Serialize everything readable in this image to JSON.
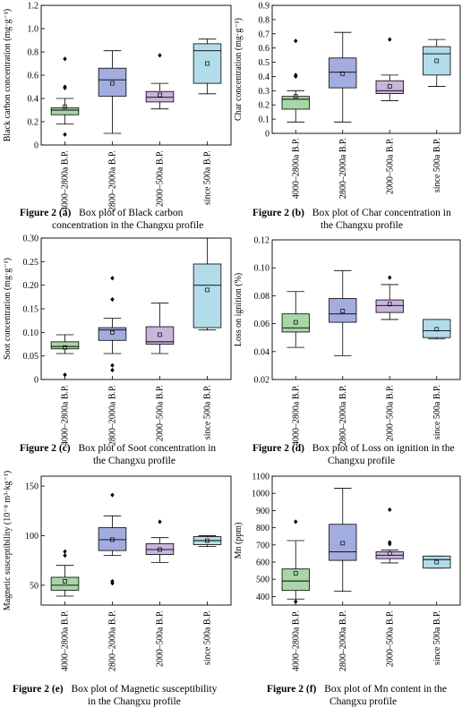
{
  "figure": {
    "panels": [
      {
        "caption_label": "Figure 2 (a)",
        "caption_text": "Box plot of Black carbon concentration in the Changxu profile",
        "caption_lines": [
          "Box plot of Black carbon",
          "concentration in the Changxu profile"
        ]
      },
      {
        "caption_label": "Figure 2 (b)",
        "caption_text": "Box plot of Char concentration in the Changxu profile",
        "caption_lines": [
          "Box plot of Char concentration in",
          "the Changxu profile"
        ]
      },
      {
        "caption_label": "Figure 2 (c)",
        "caption_text": "Box plot of Soot concentration in the Changxu profile",
        "caption_lines": [
          "Box plot of Soot concentration in",
          "the Changxu profile"
        ]
      },
      {
        "caption_label": "Figure 2 (d)",
        "caption_text": "Box plot of Loss on ignition in the Changxu profile",
        "caption_lines": [
          "Box plot of Loss on ignition in the",
          "Changxu profile"
        ]
      },
      {
        "caption_label": "Figure 2 (e)",
        "caption_text": "Box plot of Magnetic susceptibility in the Changxu profile",
        "caption_lines": [
          "Box plot of Magnetic susceptibility",
          "in the Changxu profile"
        ]
      },
      {
        "caption_label": "Figure 2 (f)",
        "caption_text": "Box plot of Mn content in the Changxu profile",
        "caption_lines": [
          "Box plot of Mn content in the",
          "Changxu profile"
        ]
      }
    ]
  },
  "chart_data": [
    {
      "type": "box",
      "ylabel": "Black carbon concentration (mg·g⁻¹)",
      "ylim": [
        0,
        1.2
      ],
      "yticks": [
        0,
        0.2,
        0.4,
        0.6,
        0.8,
        1.0,
        1.2
      ],
      "ytick_labels": [
        "0",
        "0.2",
        "0.4",
        "0.6",
        "0.8",
        "1.0",
        "1.2"
      ],
      "categories": [
        "4000–2800a B.P.",
        "2800–2000a B.P.",
        "2000–500a B.P.",
        "since 500a B.P."
      ],
      "colors": [
        "#a9d5a7",
        "#a3acdf",
        "#c9b4dd",
        "#b2dcea"
      ],
      "grid": false,
      "boxes": [
        {
          "min": 0.18,
          "q1": 0.26,
          "median": 0.3,
          "q3": 0.32,
          "max": 0.4,
          "mean": 0.33,
          "outliers": [
            0.74,
            0.5,
            0.49,
            0.09
          ]
        },
        {
          "min": 0.1,
          "q1": 0.42,
          "median": 0.56,
          "q3": 0.66,
          "max": 0.81,
          "mean": 0.53,
          "outliers": []
        },
        {
          "min": 0.31,
          "q1": 0.37,
          "median": 0.41,
          "q3": 0.46,
          "max": 0.53,
          "mean": 0.43,
          "outliers": [
            0.77
          ]
        },
        {
          "min": 0.44,
          "q1": 0.53,
          "median": 0.81,
          "q3": 0.87,
          "max": 0.91,
          "mean": 0.7,
          "outliers": []
        }
      ]
    },
    {
      "type": "box",
      "ylabel": "Char concentration (mg·g⁻¹)",
      "ylim": [
        0,
        0.9
      ],
      "yticks": [
        0,
        0.1,
        0.2,
        0.3,
        0.4,
        0.5,
        0.6,
        0.7,
        0.8,
        0.9
      ],
      "ytick_labels": [
        "0",
        "0.1",
        "0.2",
        "0.3",
        "0.4",
        "0.5",
        "0.6",
        "0.7",
        "0.8",
        "0.9"
      ],
      "categories": [
        "4000–2800a B.P.",
        "2800–2000a B.P.",
        "2000–500a B.P.",
        "since 500a B.P."
      ],
      "colors": [
        "#a9d5a7",
        "#a3acdf",
        "#c9b4dd",
        "#b2dcea"
      ],
      "grid": false,
      "boxes": [
        {
          "min": 0.08,
          "q1": 0.17,
          "median": 0.24,
          "q3": 0.26,
          "max": 0.3,
          "mean": 0.26,
          "outliers": [
            0.65,
            0.41,
            0.4
          ]
        },
        {
          "min": 0.08,
          "q1": 0.32,
          "median": 0.43,
          "q3": 0.53,
          "max": 0.71,
          "mean": 0.42,
          "outliers": []
        },
        {
          "min": 0.23,
          "q1": 0.28,
          "median": 0.3,
          "q3": 0.37,
          "max": 0.41,
          "mean": 0.33,
          "outliers": [
            0.66
          ]
        },
        {
          "min": 0.33,
          "q1": 0.41,
          "median": 0.56,
          "q3": 0.61,
          "max": 0.66,
          "mean": 0.51,
          "outliers": []
        }
      ]
    },
    {
      "type": "box",
      "ylabel": "Soot concentration (mg·g⁻¹)",
      "ylim": [
        0,
        0.3
      ],
      "yticks": [
        0,
        0.05,
        0.1,
        0.15,
        0.2,
        0.25,
        0.3
      ],
      "ytick_labels": [
        "0",
        "0.05",
        "0.10",
        "0.15",
        "0.20",
        "0.25",
        "0.30"
      ],
      "categories": [
        "4000–2800a B.P.",
        "2800–2000a B.P.",
        "2000–500a B.P.",
        "since 500a B.P."
      ],
      "colors": [
        "#a9d5a7",
        "#a3acdf",
        "#c9b4dd",
        "#b2dcea"
      ],
      "grid": false,
      "boxes": [
        {
          "min": 0.055,
          "q1": 0.065,
          "median": 0.07,
          "q3": 0.08,
          "max": 0.095,
          "mean": 0.068,
          "outliers": [
            0.01
          ]
        },
        {
          "min": 0.055,
          "q1": 0.083,
          "median": 0.105,
          "q3": 0.11,
          "max": 0.13,
          "mean": 0.1,
          "outliers": [
            0.215,
            0.17,
            0.03,
            0.02
          ]
        },
        {
          "min": 0.055,
          "q1": 0.075,
          "median": 0.08,
          "q3": 0.112,
          "max": 0.162,
          "mean": 0.095,
          "outliers": []
        },
        {
          "min": 0.105,
          "q1": 0.11,
          "median": 0.2,
          "q3": 0.245,
          "max": 0.3,
          "mean": 0.19,
          "outliers": []
        }
      ]
    },
    {
      "type": "box",
      "ylabel": "Loss on ignition (%)",
      "ylim": [
        0.02,
        0.12
      ],
      "yticks": [
        0.02,
        0.04,
        0.06,
        0.08,
        0.1,
        0.12
      ],
      "ytick_labels": [
        "0.02",
        "0.04",
        "0.06",
        "0.08",
        "0.10",
        "0.12"
      ],
      "categories": [
        "4000–2800a B.P.",
        "2800–2000a B.P.",
        "2000–500a B.P.",
        "since 500a B.P."
      ],
      "colors": [
        "#a9d5a7",
        "#a3acdf",
        "#c9b4dd",
        "#b2dcea"
      ],
      "grid": false,
      "boxes": [
        {
          "min": 0.043,
          "q1": 0.054,
          "median": 0.057,
          "q3": 0.067,
          "max": 0.083,
          "mean": 0.061,
          "outliers": []
        },
        {
          "min": 0.037,
          "q1": 0.061,
          "median": 0.067,
          "q3": 0.078,
          "max": 0.098,
          "mean": 0.069,
          "outliers": []
        },
        {
          "min": 0.063,
          "q1": 0.068,
          "median": 0.073,
          "q3": 0.077,
          "max": 0.088,
          "mean": 0.074,
          "outliers": [
            0.093
          ]
        },
        {
          "min": 0.049,
          "q1": 0.05,
          "median": 0.055,
          "q3": 0.063,
          "max": 0.063,
          "mean": 0.056,
          "outliers": []
        }
      ]
    },
    {
      "type": "box",
      "ylabel": "Magnetic susceptibility (10⁻⁸ m³·kg⁻¹)",
      "ylim": [
        30,
        160
      ],
      "yticks": [
        50,
        100,
        150
      ],
      "ytick_labels": [
        "50",
        "100",
        "150"
      ],
      "categories": [
        "4000–2800a B.P.",
        "2800–2000a B.P.",
        "2000–500a B.P.",
        "since 500a B.P."
      ],
      "colors": [
        "#a9d5a7",
        "#a3acdf",
        "#c9b4dd",
        "#b2dcea"
      ],
      "grid": false,
      "boxes": [
        {
          "min": 39,
          "q1": 45,
          "median": 50,
          "q3": 58,
          "max": 70,
          "mean": 54,
          "outliers": [
            84,
            80
          ]
        },
        {
          "min": 80,
          "q1": 85,
          "median": 96,
          "q3": 108,
          "max": 120,
          "mean": 96,
          "outliers": [
            141,
            54,
            52
          ]
        },
        {
          "min": 73,
          "q1": 81,
          "median": 86,
          "q3": 92,
          "max": 98,
          "mean": 86,
          "outliers": [
            114
          ]
        },
        {
          "min": 89,
          "q1": 91,
          "median": 95,
          "q3": 99,
          "max": 100,
          "mean": 95,
          "outliers": []
        }
      ]
    },
    {
      "type": "box",
      "ylabel": "Mn (ppm)",
      "ylim": [
        350,
        1100
      ],
      "yticks": [
        400,
        500,
        600,
        700,
        800,
        900,
        1000,
        1100
      ],
      "ytick_labels": [
        "400",
        "500",
        "600",
        "700",
        "800",
        "900",
        "1000",
        "1100"
      ],
      "categories": [
        "4000–2800a B.P.",
        "2800–2000a B.P.",
        "2000–500a B.P.",
        "since 500a B.P."
      ],
      "colors": [
        "#a9d5a7",
        "#a3acdf",
        "#c9b4dd",
        "#b2dcea"
      ],
      "grid": false,
      "boxes": [
        {
          "min": 385,
          "q1": 435,
          "median": 490,
          "q3": 560,
          "max": 725,
          "mean": 535,
          "outliers": [
            835,
            370
          ]
        },
        {
          "min": 430,
          "q1": 610,
          "median": 660,
          "q3": 820,
          "max": 1030,
          "mean": 710,
          "outliers": []
        },
        {
          "min": 595,
          "q1": 620,
          "median": 640,
          "q3": 660,
          "max": 670,
          "mean": 650,
          "outliers": [
            905,
            715,
            705
          ]
        },
        {
          "min": 565,
          "q1": 565,
          "median": 615,
          "q3": 635,
          "max": 635,
          "mean": 600,
          "outliers": []
        }
      ]
    }
  ]
}
